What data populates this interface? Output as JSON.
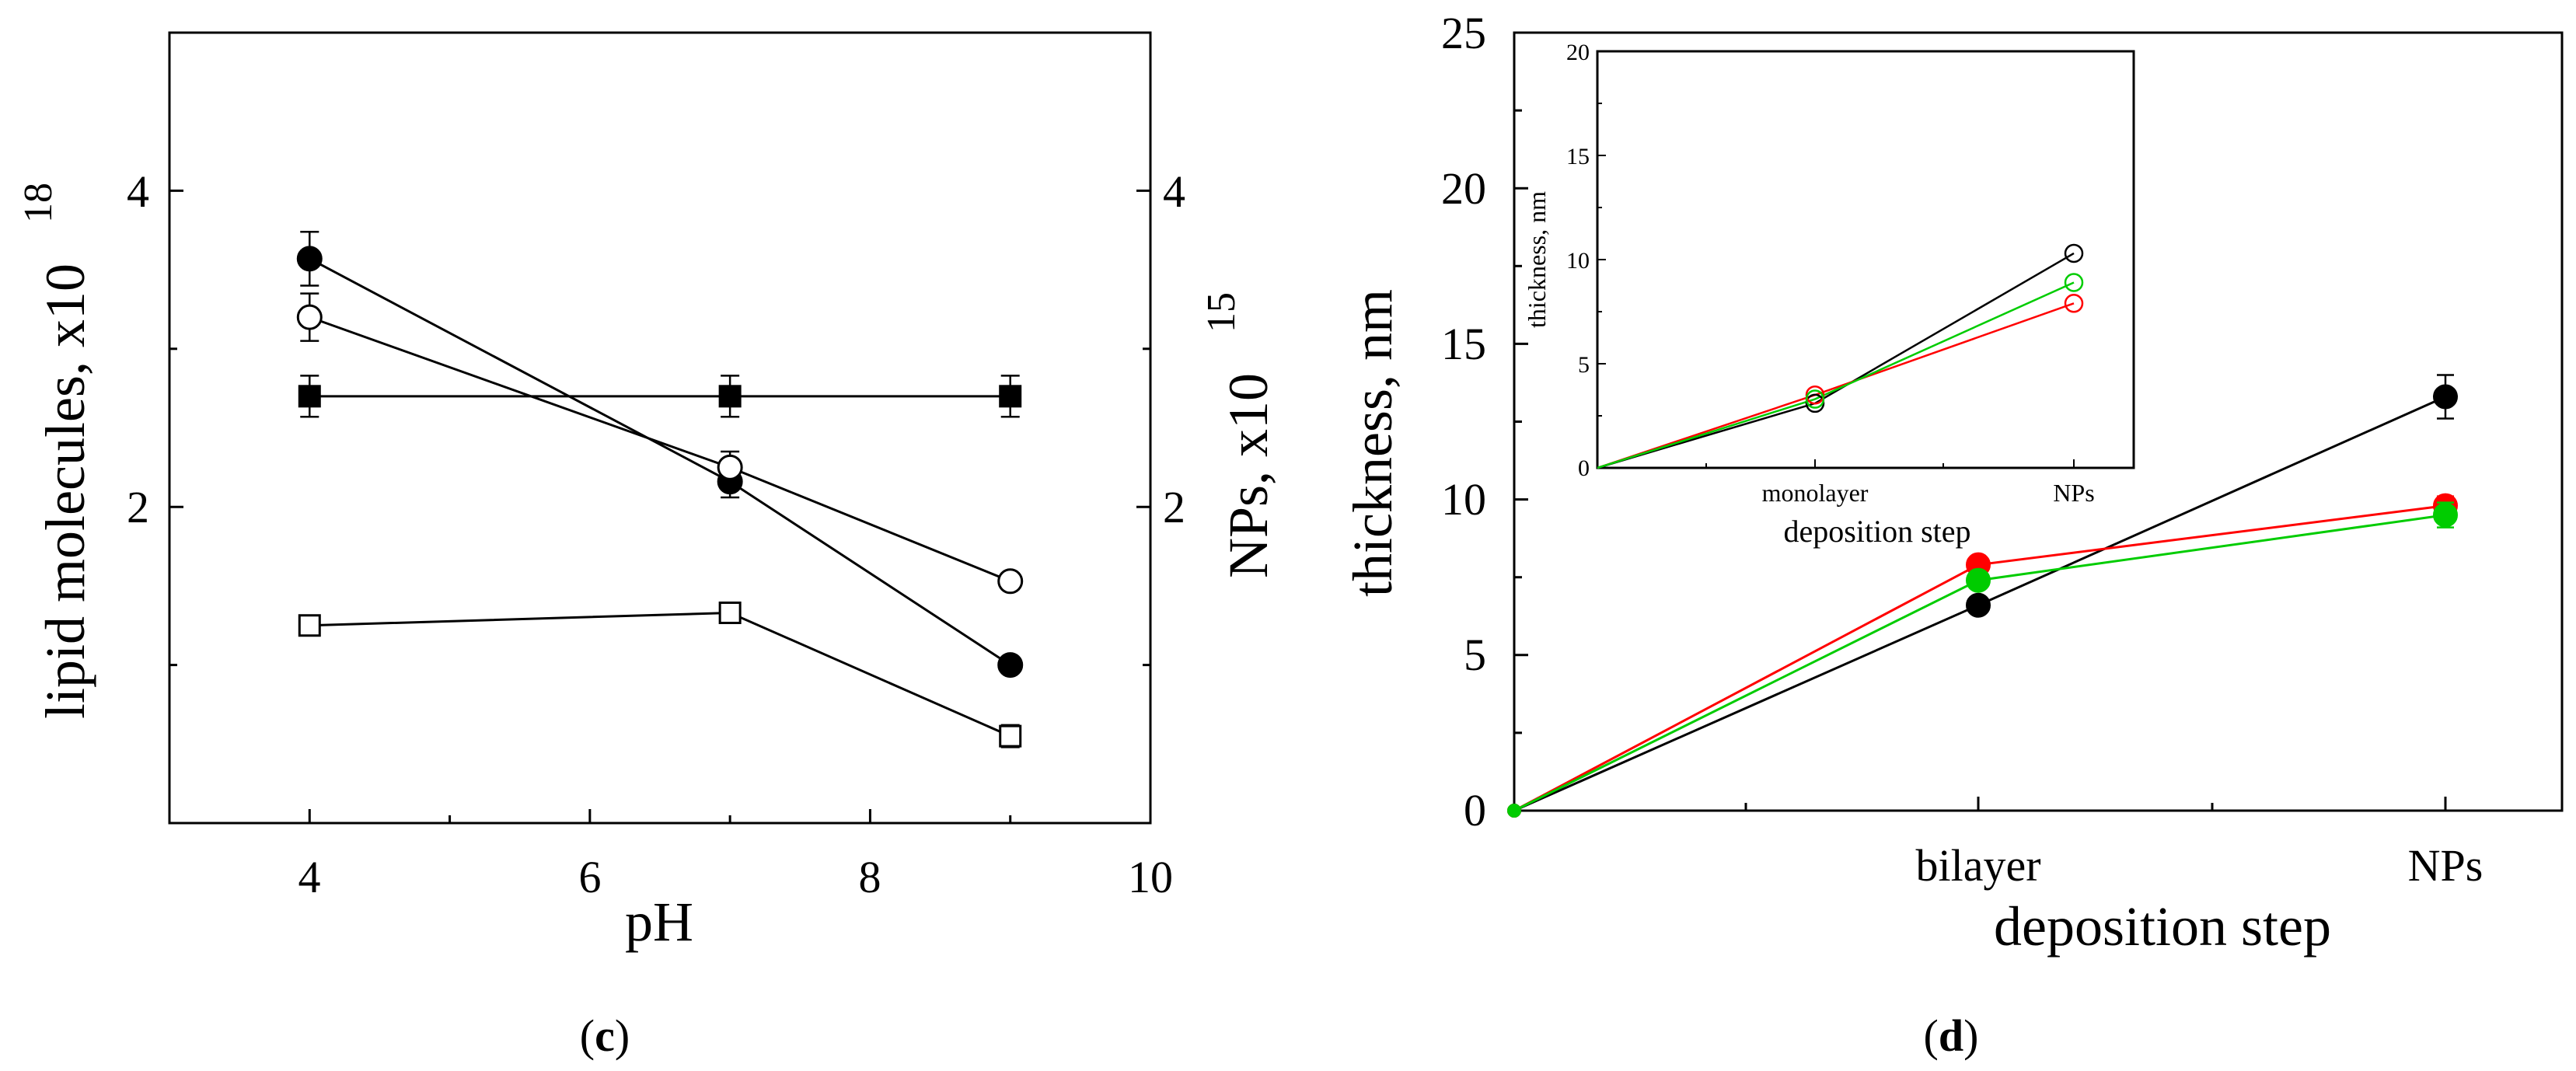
{
  "chart_data": [
    {
      "type": "line",
      "panel_label": "c",
      "title": "",
      "xlabel": "pH",
      "ylabel_left": "lipid molecules, x10",
      "ylabel_left_exponent": "18",
      "ylabel_right": "NPs, x10",
      "ylabel_right_exponent": "15",
      "xlim": [
        3,
        10
      ],
      "ylim": [
        0,
        5
      ],
      "x_ticks": [
        "4",
        "6",
        "8",
        "10"
      ],
      "y_left_ticks": [
        "2",
        "4"
      ],
      "y_right_ticks": [
        "2",
        "4"
      ],
      "grid": false,
      "series": [
        {
          "name": "filled circles",
          "marker": "circle",
          "filled": true,
          "x": [
            4,
            7,
            9
          ],
          "values": [
            3.57,
            2.16,
            1.0
          ],
          "err": [
            0.17,
            0.1,
            0.0
          ]
        },
        {
          "name": "open circles",
          "marker": "circle",
          "filled": false,
          "x": [
            4,
            7,
            9
          ],
          "values": [
            3.2,
            2.25,
            1.53
          ],
          "err": [
            0.15,
            0.1,
            0.05
          ]
        },
        {
          "name": "filled squares",
          "marker": "square",
          "filled": true,
          "x": [
            4,
            7,
            9
          ],
          "values": [
            2.7,
            2.7,
            2.7
          ],
          "err": [
            0.13,
            0.13,
            0.13
          ]
        },
        {
          "name": "open squares",
          "marker": "square",
          "filled": false,
          "x": [
            4,
            7,
            9
          ],
          "values": [
            1.25,
            1.33,
            0.55
          ],
          "err": [
            0.0,
            0.0,
            0.07
          ]
        }
      ]
    },
    {
      "type": "line",
      "panel_label": "d",
      "title": "",
      "xlabel": "deposition step",
      "ylabel": "thickness, nm",
      "categories": [
        "",
        "bilayer",
        "NPs"
      ],
      "ylim": [
        0,
        25
      ],
      "y_ticks": [
        "0",
        "5",
        "10",
        "15",
        "20",
        "25"
      ],
      "grid": false,
      "series": [
        {
          "name": "black",
          "color": "#000000",
          "values": [
            0,
            6.6,
            13.3
          ],
          "err": [
            0,
            0.2,
            0.7
          ]
        },
        {
          "name": "red",
          "color": "#ff0000",
          "values": [
            0,
            7.9,
            9.8
          ],
          "err": [
            0,
            0.2,
            0.3
          ]
        },
        {
          "name": "green",
          "color": "#00cc00",
          "values": [
            0,
            7.4,
            9.5
          ],
          "err": [
            0,
            0.2,
            0.4
          ]
        }
      ],
      "inset": {
        "type": "line",
        "xlabel": "deposition step",
        "ylabel": "thickness, nm",
        "categories": [
          "",
          "monolayer",
          "NPs"
        ],
        "ylim": [
          0,
          20
        ],
        "y_ticks": [
          "0",
          "5",
          "10",
          "15",
          "20"
        ],
        "series": [
          {
            "name": "black",
            "color": "#000000",
            "values": [
              0,
              3.1,
              10.3
            ]
          },
          {
            "name": "red",
            "color": "#ff0000",
            "values": [
              0,
              3.5,
              7.9
            ]
          },
          {
            "name": "green",
            "color": "#00cc00",
            "values": [
              0,
              3.3,
              8.9
            ]
          }
        ]
      }
    }
  ]
}
